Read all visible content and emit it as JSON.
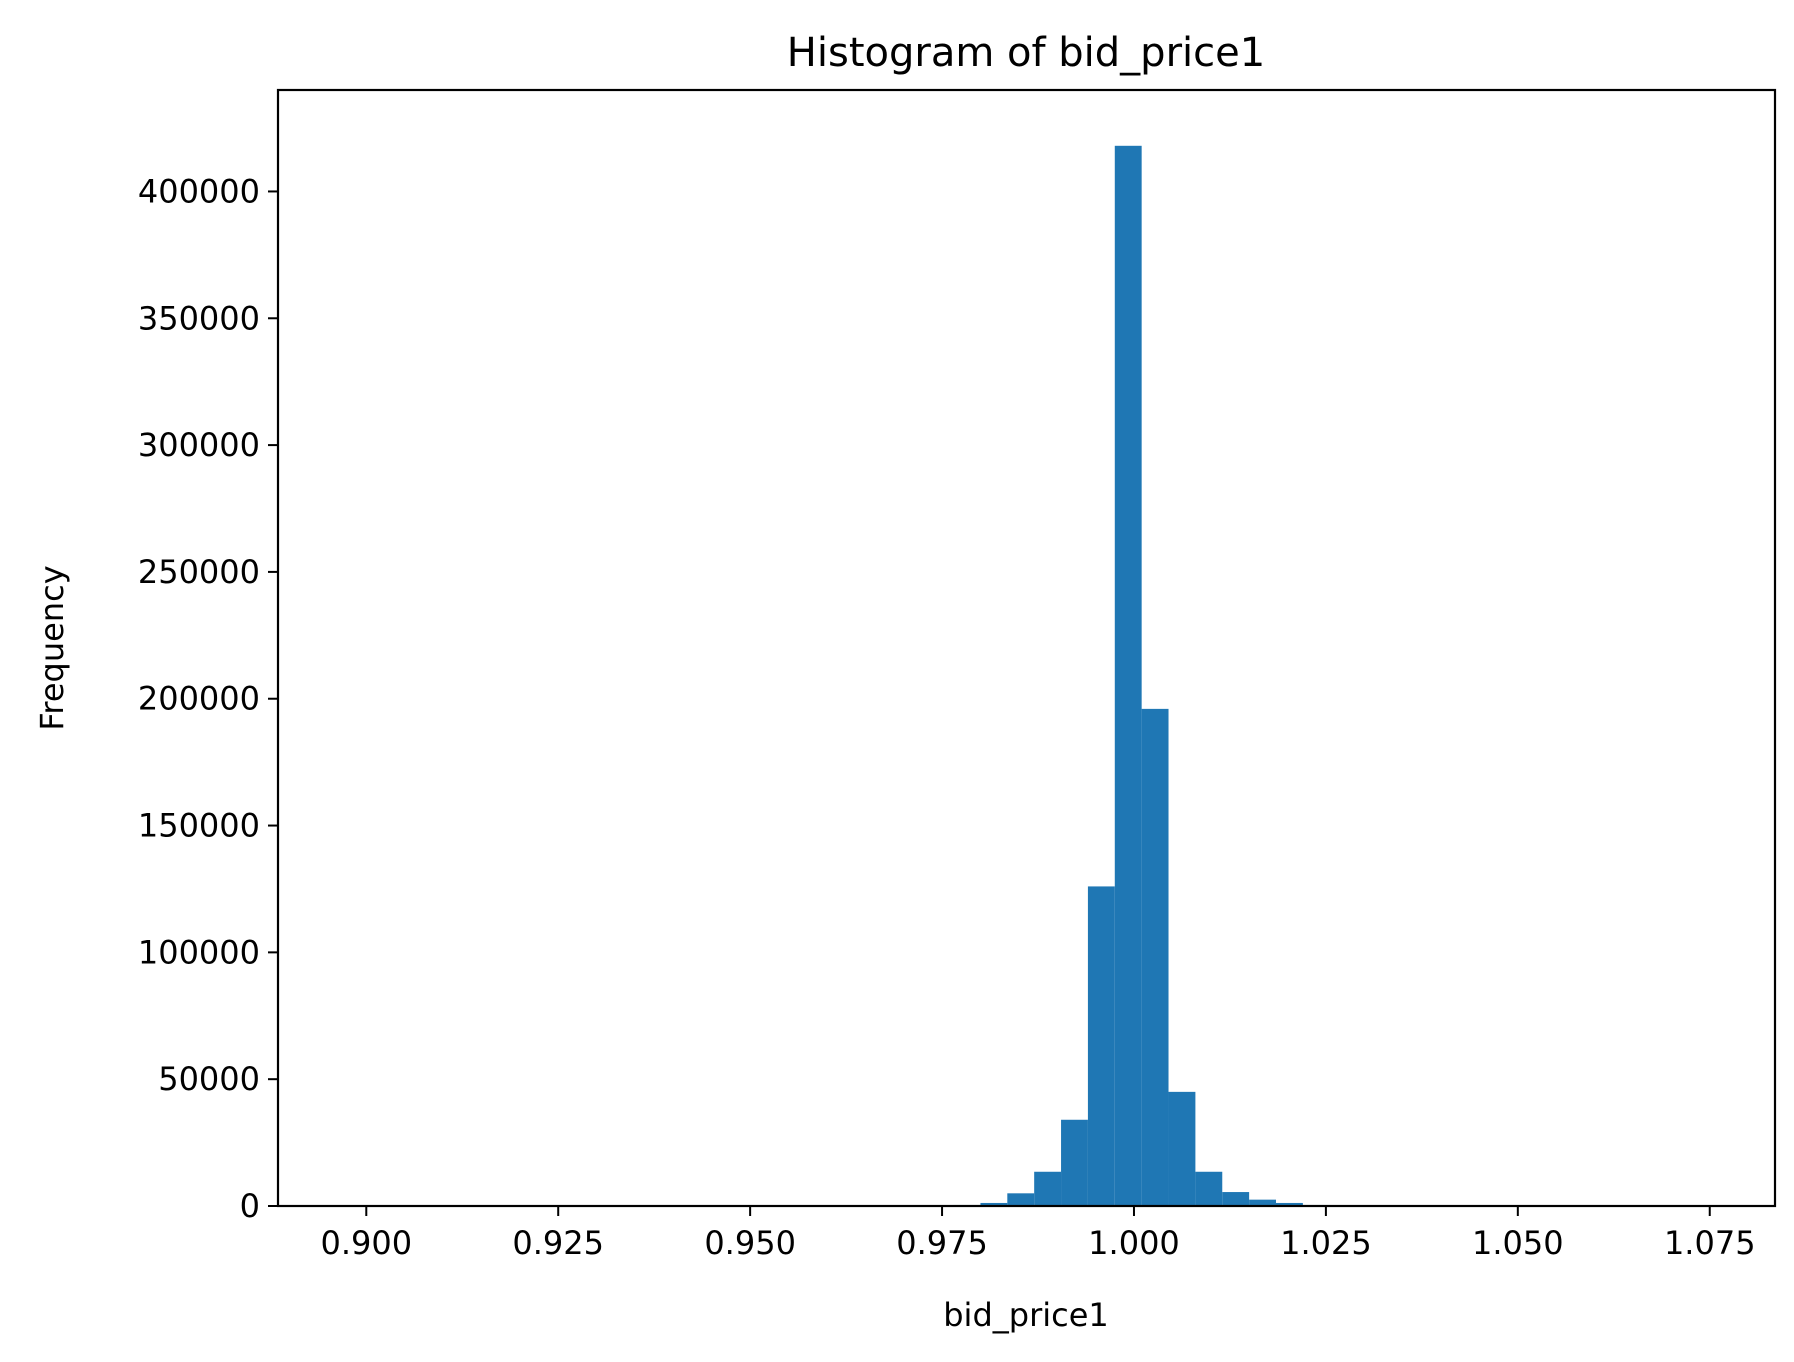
{
  "chart_data": {
    "type": "bar",
    "title": "Histogram of bid_price1",
    "xlabel": "bid_price1",
    "ylabel": "Frequency",
    "xlim": [
      0.8885,
      1.0835
    ],
    "ylim": [
      0,
      440000
    ],
    "x_ticks": [
      "0.900",
      "0.925",
      "0.950",
      "0.975",
      "1.000",
      "1.025",
      "1.050",
      "1.075"
    ],
    "x_tick_values": [
      0.9,
      0.925,
      0.95,
      0.975,
      1.0,
      1.025,
      1.05,
      1.075
    ],
    "y_ticks": [
      "0",
      "50000",
      "100000",
      "150000",
      "200000",
      "250000",
      "300000",
      "350000",
      "400000"
    ],
    "y_tick_values": [
      0,
      50000,
      100000,
      150000,
      200000,
      250000,
      300000,
      350000,
      400000
    ],
    "bar_color": "#1f77b4",
    "bin_width": 0.0035,
    "bins": [
      {
        "x0": 0.9765,
        "value": 400
      },
      {
        "x0": 0.98,
        "value": 1200
      },
      {
        "x0": 0.9835,
        "value": 5000
      },
      {
        "x0": 0.987,
        "value": 13500
      },
      {
        "x0": 0.9905,
        "value": 34000
      },
      {
        "x0": 0.994,
        "value": 126000
      },
      {
        "x0": 0.9975,
        "value": 418000
      },
      {
        "x0": 1.001,
        "value": 196000
      },
      {
        "x0": 1.0045,
        "value": 45000
      },
      {
        "x0": 1.008,
        "value": 13500
      },
      {
        "x0": 1.0115,
        "value": 5500
      },
      {
        "x0": 1.015,
        "value": 2500
      },
      {
        "x0": 1.0185,
        "value": 1200
      },
      {
        "x0": 1.022,
        "value": 400
      }
    ],
    "grid": false,
    "legend": "none"
  }
}
